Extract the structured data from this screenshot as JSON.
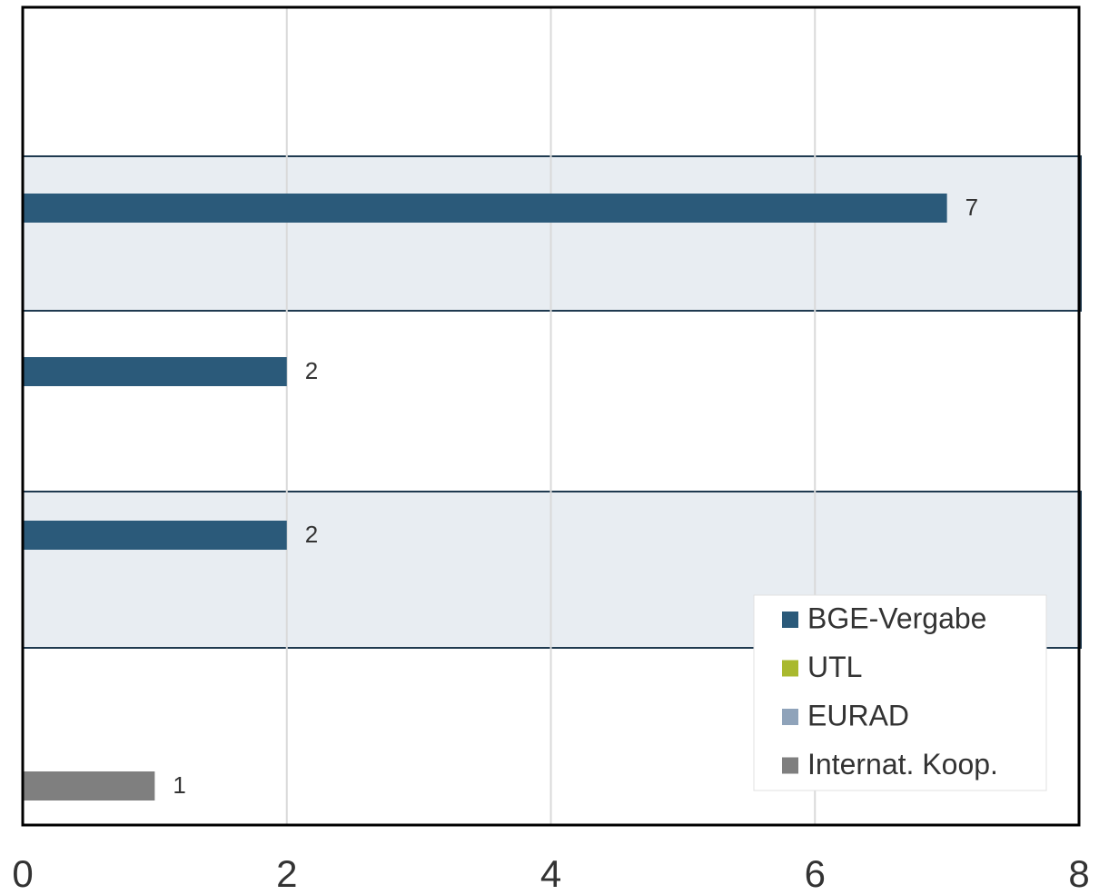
{
  "chart_data": {
    "type": "bar",
    "orientation": "horizontal",
    "categories": [
      null,
      null,
      null,
      null,
      null
    ],
    "series": [
      {
        "name": "BGE-Vergabe",
        "color": "#2b5a7a",
        "values": [
          null,
          7,
          2,
          2,
          null
        ]
      },
      {
        "name": "UTL",
        "color": "#a9b92e",
        "values": [
          null,
          null,
          null,
          null,
          null
        ]
      },
      {
        "name": "EURAD",
        "color": "#8fa3ba",
        "values": [
          null,
          null,
          null,
          null,
          null
        ]
      },
      {
        "name": "Internat. Koop.",
        "color": "#7f7f7f",
        "values": [
          null,
          null,
          null,
          null,
          1
        ]
      }
    ],
    "xlim": [
      0,
      8
    ],
    "xticks": [
      0,
      2,
      4,
      6,
      8
    ],
    "grid": true,
    "legend": "lower right"
  }
}
